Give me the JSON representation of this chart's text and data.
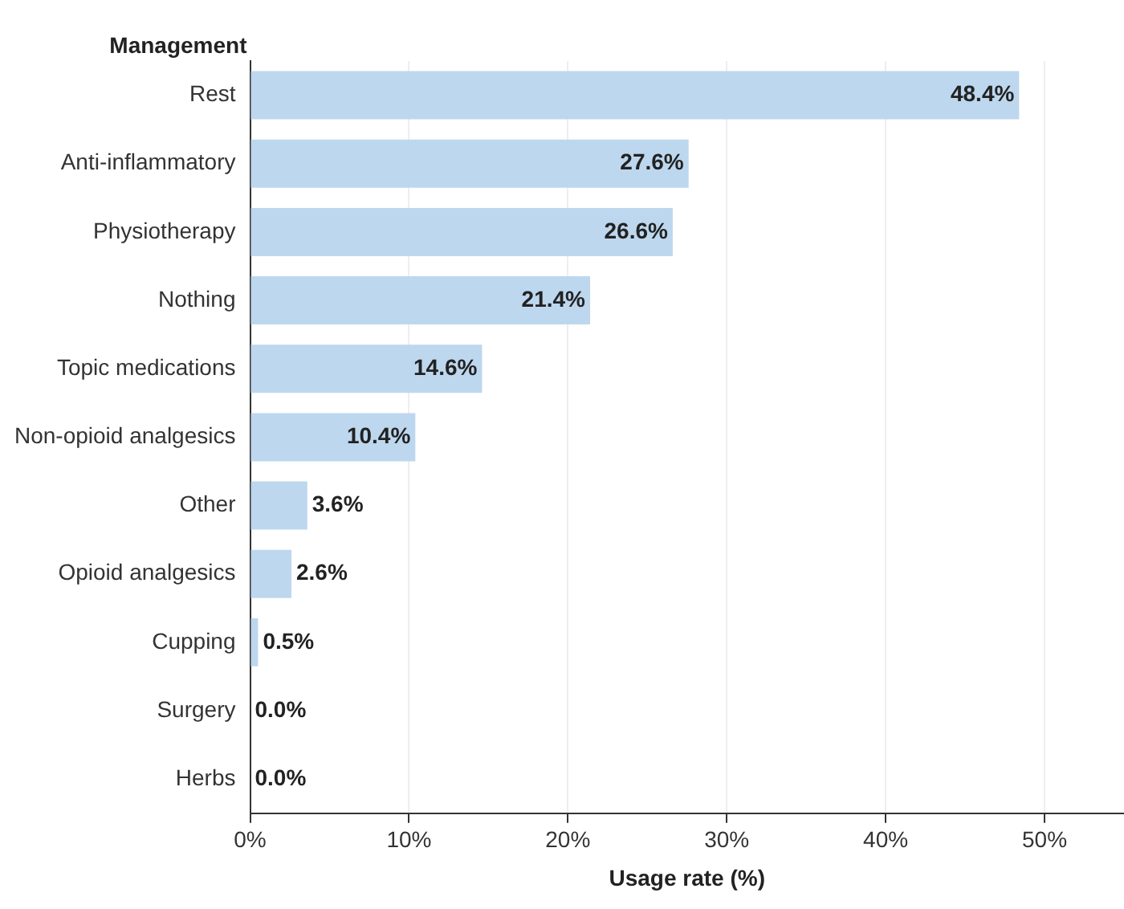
{
  "chart_data": {
    "type": "bar",
    "orientation": "horizontal",
    "ylabel": "Management",
    "xlabel": "Usage rate (%)",
    "categories": [
      "Rest",
      "Anti-inflammatory",
      "Physiotherapy",
      "Nothing",
      "Topic medications",
      "Non-opioid analgesics",
      "Other",
      "Opioid analgesics",
      "Cupping",
      "Surgery",
      "Herbs"
    ],
    "values": [
      48.4,
      27.6,
      26.6,
      21.4,
      14.6,
      10.4,
      3.6,
      2.6,
      0.5,
      0.0,
      0.0
    ],
    "value_labels": [
      "48.4%",
      "27.6%",
      "26.6%",
      "21.4%",
      "14.6%",
      "10.4%",
      "3.6%",
      "2.6%",
      "0.5%",
      "0.0%",
      "0.0%"
    ],
    "color": "#bdd7ee",
    "xlim": [
      0,
      55
    ],
    "xticks": [
      {
        "value": 0,
        "label": "0%"
      },
      {
        "value": 10,
        "label": "10%"
      },
      {
        "value": 20,
        "label": "20%"
      },
      {
        "value": 30,
        "label": "30%"
      },
      {
        "value": 40,
        "label": "40%"
      },
      {
        "value": 50,
        "label": "50%"
      }
    ],
    "grid": "x",
    "legend": false
  }
}
